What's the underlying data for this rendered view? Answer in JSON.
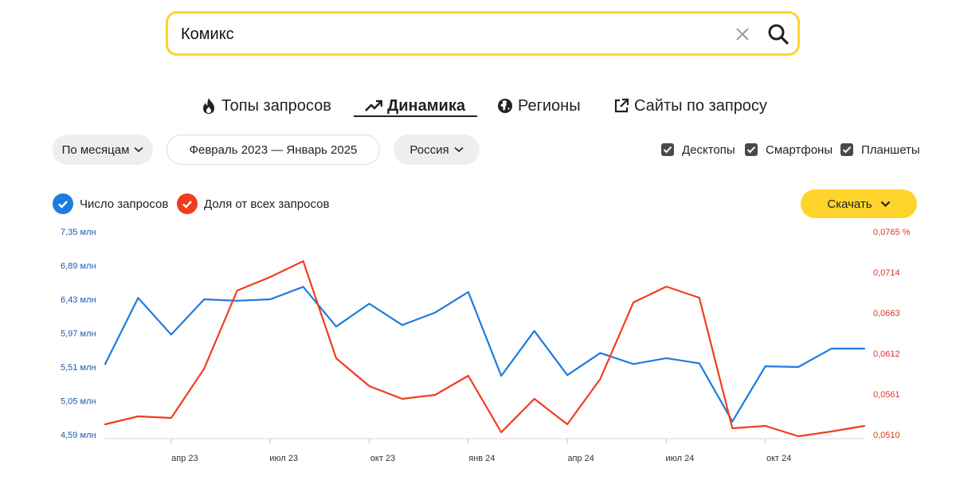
{
  "search": {
    "value": "Комикс"
  },
  "tabs": [
    {
      "label": "Топы запросов",
      "icon": "fire-icon"
    },
    {
      "label": "Динамика",
      "icon": "trend-up-icon",
      "active": true
    },
    {
      "label": "Регионы",
      "icon": "globe-icon"
    },
    {
      "label": "Сайты по запросу",
      "icon": "external-link-icon"
    }
  ],
  "filters": {
    "period": "По месяцам",
    "date_range": "Февраль 2023 — Январь 2025",
    "region": "Россия"
  },
  "devices": [
    {
      "label": "Десктопы",
      "checked": true
    },
    {
      "label": "Смартфоны",
      "checked": true
    },
    {
      "label": "Планшеты",
      "checked": true
    }
  ],
  "legend": [
    {
      "label": "Число запросов",
      "color": "#1e7be0"
    },
    {
      "label": "Доля от всех запросов",
      "color": "#f23c1f"
    }
  ],
  "download_label": "Скачать",
  "chart_data": {
    "type": "line",
    "x": [
      "2023-02",
      "2023-03",
      "2023-04",
      "2023-05",
      "2023-06",
      "2023-07",
      "2023-08",
      "2023-09",
      "2023-10",
      "2023-11",
      "2023-12",
      "2024-01",
      "2024-02",
      "2024-03",
      "2024-04",
      "2024-05",
      "2024-06",
      "2024-07",
      "2024-08",
      "2024-09",
      "2024-10",
      "2024-11",
      "2024-12",
      "2025-01"
    ],
    "x_tick_labels": [
      {
        "x": "2023-04",
        "label": "апр 23"
      },
      {
        "x": "2023-07",
        "label": "июл 23"
      },
      {
        "x": "2023-10",
        "label": "окт 23"
      },
      {
        "x": "2024-01",
        "label": "янв 24"
      },
      {
        "x": "2024-04",
        "label": "апр 24"
      },
      {
        "x": "2024-07",
        "label": "июл 24"
      },
      {
        "x": "2024-10",
        "label": "окт 24"
      }
    ],
    "y_left_ticks": [
      "4,59 млн",
      "5,05 млн",
      "5,51 млн",
      "5,97 млн",
      "6,43 млн",
      "6,89 млн",
      "7,35 млн"
    ],
    "y_left_range": [
      4.59,
      7.35
    ],
    "y_right_ticks": [
      "0,0510",
      "0,0561",
      "0,0612",
      "0,0663",
      "0,0714",
      "0,0765 %"
    ],
    "y_right_range": [
      0.051,
      0.0765
    ],
    "series": [
      {
        "name": "Число запросов",
        "axis": "left",
        "color": "#1e7be0",
        "values": [
          5.55,
          6.45,
          5.95,
          6.43,
          6.41,
          6.43,
          6.6,
          6.06,
          6.37,
          6.08,
          6.25,
          6.53,
          5.39,
          6.0,
          5.4,
          5.7,
          5.55,
          5.63,
          5.56,
          4.77,
          5.52,
          5.51,
          5.76,
          5.76
        ]
      },
      {
        "name": "Доля от всех запросов",
        "axis": "right",
        "color": "#f23c1f",
        "values": [
          0.0523,
          0.0533,
          0.0531,
          0.0593,
          0.0691,
          0.0708,
          0.0728,
          0.0606,
          0.0571,
          0.0555,
          0.056,
          0.0584,
          0.0513,
          0.0555,
          0.0523,
          0.058,
          0.0676,
          0.0696,
          0.0682,
          0.0518,
          0.0521,
          0.0508,
          0.0514,
          0.0521
        ]
      }
    ]
  }
}
